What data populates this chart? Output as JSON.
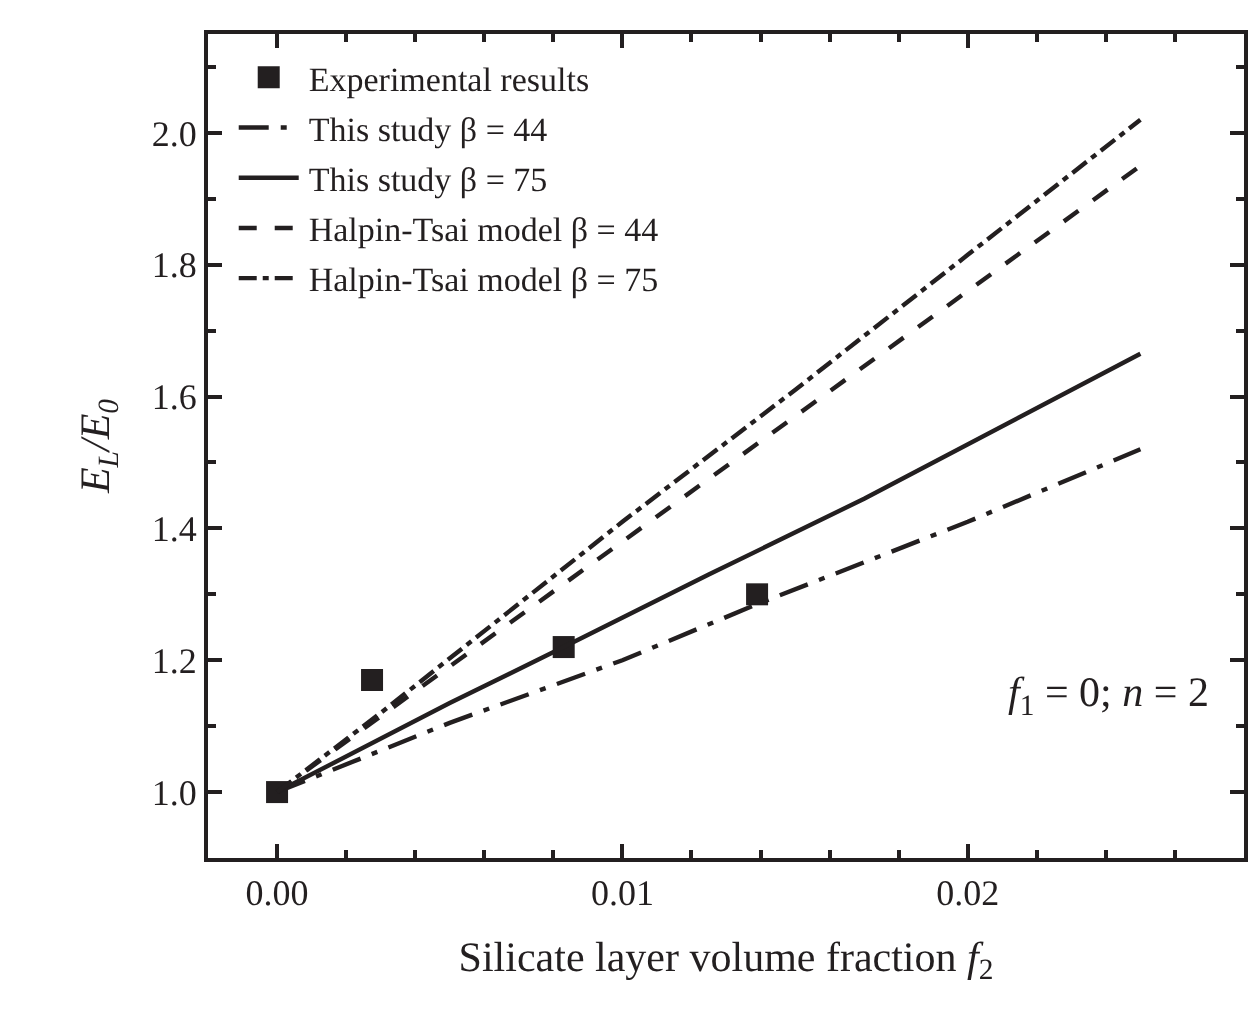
{
  "chart_data": {
    "type": "line",
    "xlabel": "Silicate layer volume fraction f$_{2}$",
    "ylabel": "E$_{L}$/E$_{0}$",
    "annotations": [
      "f$_{1}$ = 0; n = 2"
    ],
    "xlim": [
      -0.002,
      0.028
    ],
    "xticks": [
      {
        "value": 0,
        "label": "0.00"
      },
      0.01,
      0.02
    ],
    "ylim": [
      0.9,
      2.15
    ],
    "yticks": [
      {
        "value": 1,
        "label": "1.0"
      },
      1.2,
      1.4,
      1.6,
      1.8,
      {
        "value": 2,
        "label": "2.0"
      }
    ],
    "legend": "top left",
    "series": [
      {
        "name": "Experimental results",
        "type": "scatter",
        "marker": "square",
        "color": "#231f20",
        "x": [
          0,
          0.00275,
          0.0083,
          0.0139
        ],
        "values": [
          1.0,
          1.17,
          1.22,
          1.3
        ]
      },
      {
        "name": "This study β = 44",
        "line_style": "longdashdot",
        "color": "#231f20",
        "x": [
          0,
          0.005,
          0.01,
          0.0139,
          0.02,
          0.025
        ],
        "values": [
          1.0,
          1.105,
          1.2,
          1.285,
          1.41,
          1.52
        ]
      },
      {
        "name": "This study β = 75",
        "line_style": "solid",
        "color": "#231f20",
        "x": [
          0,
          0.005,
          0.0083,
          0.0125,
          0.017,
          0.025
        ],
        "values": [
          1.0,
          1.135,
          1.22,
          1.33,
          1.445,
          1.665
        ]
      },
      {
        "name": "Halpin-Tsai model β = 44",
        "line_style": "dashed",
        "color": "#231f20",
        "x": [
          0,
          0.003,
          0.01,
          0.015,
          0.02,
          0.025
        ],
        "values": [
          1.0,
          1.115,
          1.38,
          1.57,
          1.76,
          1.95
        ]
      },
      {
        "name": "Halpin-Tsai model β = 75",
        "line_style": "dashdot",
        "color": "#231f20",
        "x": [
          0,
          0.003,
          0.01,
          0.015,
          0.02,
          0.025
        ],
        "values": [
          1.0,
          1.12,
          1.41,
          1.61,
          1.815,
          2.02
        ]
      }
    ]
  }
}
